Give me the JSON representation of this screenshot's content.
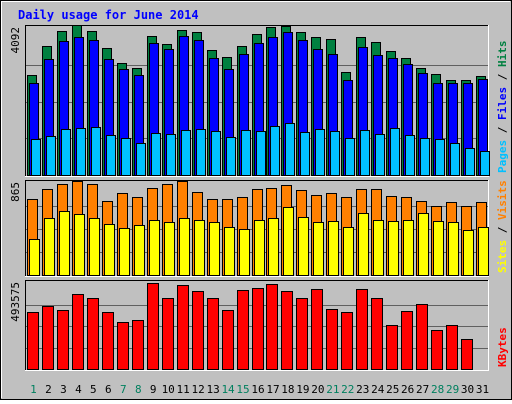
{
  "chart_data": {
    "type": "bar",
    "title": "Daily usage for June 2014",
    "categories": [
      "1",
      "2",
      "3",
      "4",
      "5",
      "6",
      "7",
      "8",
      "9",
      "10",
      "11",
      "12",
      "13",
      "14",
      "15",
      "16",
      "17",
      "18",
      "19",
      "20",
      "21",
      "22",
      "23",
      "24",
      "25",
      "26",
      "27",
      "28",
      "29",
      "30",
      "31"
    ],
    "weekend_days": [
      "1",
      "7",
      "8",
      "14",
      "15",
      "21",
      "22",
      "28",
      "29"
    ],
    "panels": [
      {
        "id": "hits-files-pages",
        "ymax_label": "4092",
        "ymax": 4092,
        "legend": [
          "Pages",
          "Files",
          "Hits"
        ],
        "series": [
          {
            "name": "Hits",
            "color": "#008040",
            "values": [
              2780,
              3600,
              4000,
              4180,
              4000,
              3530,
              3120,
              2980,
              3880,
              3650,
              4050,
              3970,
              3470,
              3280,
              3590,
              3930,
              4120,
              4150,
              3970,
              3850,
              3780,
              2880,
              3850,
              3710,
              3450,
              3250,
              2980,
              2800,
              2650,
              2650,
              2750
            ]
          },
          {
            "name": "Files",
            "color": "#0000ff",
            "values": [
              2550,
              3230,
              3730,
              3830,
              3770,
              3230,
              2950,
              2770,
              3670,
              3500,
              3870,
              3770,
              3270,
              2950,
              3370,
              3670,
              3830,
              3980,
              3760,
              3500,
              3370,
              2650,
              3570,
              3330,
              3270,
              3100,
              2830,
              2550,
              2550,
              2550,
              2670
            ]
          },
          {
            "name": "Pages",
            "color": "#00c0ff",
            "values": [
              1000,
              1080,
              1270,
              1300,
              1330,
              1120,
              1020,
              880,
              1180,
              1130,
              1250,
              1280,
              1230,
              1050,
              1250,
              1220,
              1360,
              1450,
              1210,
              1270,
              1220,
              1030,
              1250,
              1130,
              1300,
              1110,
              1040,
              990,
              880,
              760,
              670
            ]
          }
        ]
      },
      {
        "id": "sites-visits",
        "ymax_label": "865",
        "ymax": 865,
        "legend": [
          "Sites",
          "Visits"
        ],
        "series": [
          {
            "name": "Visits",
            "color": "#ff8000",
            "values": [
              710,
              810,
              860,
              880,
              860,
              700,
              770,
              735,
              820,
              860,
              880,
              780,
              715,
              710,
              735,
              810,
              820,
              850,
              800,
              750,
              770,
              735,
              810,
              810,
              740,
              730,
              700,
              650,
              690,
              650,
              690
            ]
          },
          {
            "name": "Sites",
            "color": "#ffff00",
            "values": [
              340,
              540,
              600,
              570,
              540,
              480,
              440,
              470,
              520,
              500,
              540,
              520,
              500,
              450,
              430,
              520,
              540,
              640,
              550,
              500,
              510,
              450,
              580,
              520,
              510,
              520,
              580,
              510,
              500,
              420,
              450
            ]
          }
        ]
      },
      {
        "id": "kbytes",
        "ymax_label": "493575",
        "ymax": 493575,
        "legend": [
          "KBytes"
        ],
        "series": [
          {
            "name": "KBytes",
            "color": "#ff0000",
            "values": [
              330000,
              360000,
              340000,
              430000,
              405000,
              325000,
              270000,
              280000,
              493000,
              410000,
              480000,
              445000,
              405000,
              340000,
              455000,
              465000,
              485000,
              450000,
              410000,
              460000,
              345000,
              325000,
              460000,
              410000,
              255000,
              335000,
              375000,
              225000,
              255000,
              170000,
              0
            ]
          }
        ]
      }
    ]
  }
}
